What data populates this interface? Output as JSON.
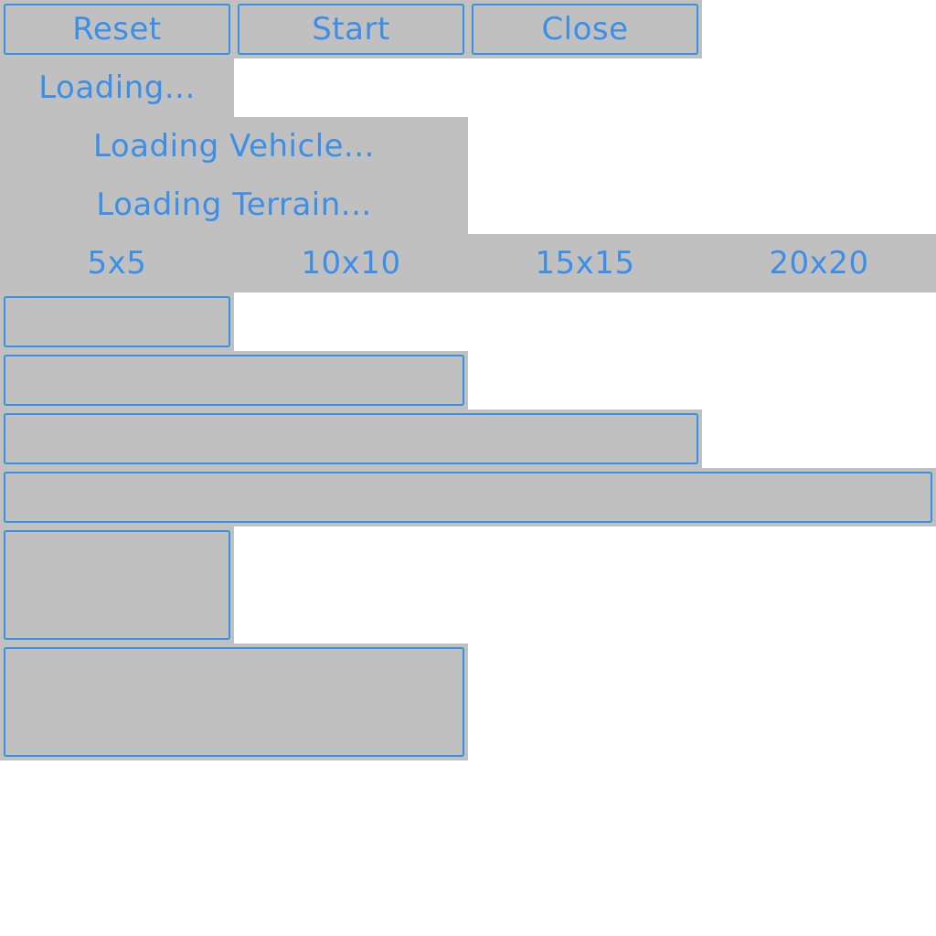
{
  "toolbar": {
    "reset_label": "Reset",
    "start_label": "Start",
    "close_label": "Close"
  },
  "status": {
    "loading_label": "Loading...",
    "vehicle_label": "Loading Vehicle...",
    "terrain_label": "Loading Terrain..."
  },
  "grid_sizes": {
    "options": [
      "5x5",
      "10x10",
      "15x15",
      "20x20"
    ]
  },
  "colors": {
    "panel": "#c0c0c0",
    "accent": "#3b8fe6",
    "background": "#ffffff"
  }
}
